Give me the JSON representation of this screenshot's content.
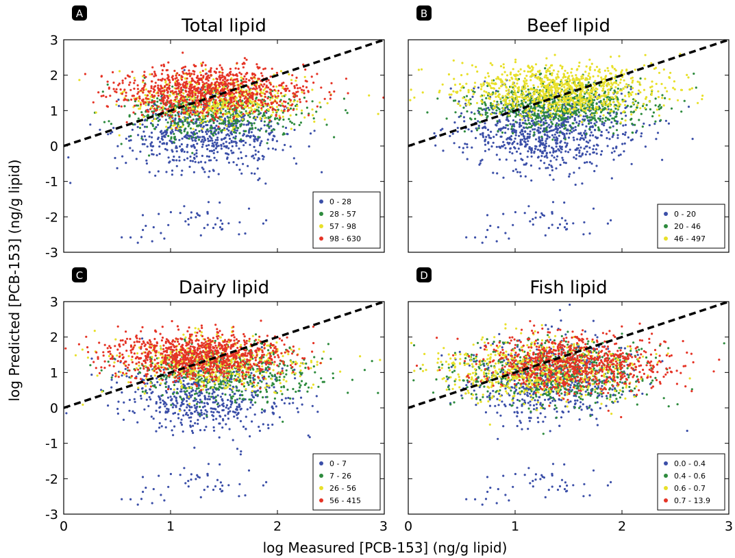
{
  "figure": {
    "xlabel": "log Measured [PCB-153] (ng/g lipid)",
    "ylabel": "log Predicted [PCB-153] (ng/g lipid)"
  },
  "colors": {
    "blue": "#3b4fa8",
    "green": "#2e8b3e",
    "yellow": "#e8e02a",
    "red": "#e53426",
    "reference_line": "#000000"
  },
  "chart_data": [
    {
      "type": "scatter",
      "letter": "A",
      "title": "Total lipid",
      "xlim": [
        0,
        3
      ],
      "ylim": [
        -3,
        3
      ],
      "xticks": [
        "0",
        "1",
        "2",
        "3"
      ],
      "yticks": [
        "3",
        "2",
        "1",
        "0",
        "-1",
        "-2",
        "-3"
      ],
      "reference_line": {
        "from": [
          0,
          0
        ],
        "to": [
          3,
          3
        ],
        "style": "dashed"
      },
      "legend_position": "lower-right",
      "series": [
        {
          "name": "0 - 28",
          "color": "blue",
          "cloud": {
            "cx": 1.3,
            "cy": 0.3,
            "sx": 0.38,
            "sy": 0.5,
            "n": 620
          }
        },
        {
          "name": "28 - 57",
          "color": "green",
          "cloud": {
            "cx": 1.4,
            "cy": 0.95,
            "sx": 0.4,
            "sy": 0.35,
            "n": 520
          }
        },
        {
          "name": "57 - 98",
          "color": "yellow",
          "cloud": {
            "cx": 1.45,
            "cy": 1.3,
            "sx": 0.42,
            "sy": 0.35,
            "n": 520
          }
        },
        {
          "name": "98 - 630",
          "color": "red",
          "cloud": {
            "cx": 1.35,
            "cy": 1.55,
            "sx": 0.42,
            "sy": 0.35,
            "n": 950
          }
        }
      ]
    },
    {
      "type": "scatter",
      "letter": "B",
      "title": "Beef lipid",
      "xlim": [
        0,
        3
      ],
      "ylim": [
        -3,
        3
      ],
      "xticks": [
        "0",
        "1",
        "2",
        "3"
      ],
      "yticks": [
        "3",
        "2",
        "1",
        "0",
        "-1",
        "-2",
        "-3"
      ],
      "reference_line": {
        "from": [
          0,
          0
        ],
        "to": [
          3,
          3
        ],
        "style": "dashed"
      },
      "legend_position": "lower-right",
      "series": [
        {
          "name": "0 - 20",
          "color": "blue",
          "cloud": {
            "cx": 1.3,
            "cy": 0.45,
            "sx": 0.4,
            "sy": 0.55,
            "n": 820
          }
        },
        {
          "name": "20 - 46",
          "color": "green",
          "cloud": {
            "cx": 1.45,
            "cy": 1.15,
            "sx": 0.42,
            "sy": 0.35,
            "n": 720
          }
        },
        {
          "name": "46 - 497",
          "color": "yellow",
          "cloud": {
            "cx": 1.4,
            "cy": 1.6,
            "sx": 0.45,
            "sy": 0.35,
            "n": 950
          }
        }
      ]
    },
    {
      "type": "scatter",
      "letter": "C",
      "title": "Dairy lipid",
      "xlim": [
        0,
        3
      ],
      "ylim": [
        -3,
        3
      ],
      "xticks": [
        "0",
        "1",
        "2",
        "3"
      ],
      "yticks": [
        "3",
        "2",
        "1",
        "0",
        "-1",
        "-2",
        "-3"
      ],
      "reference_line": {
        "from": [
          0,
          0
        ],
        "to": [
          3,
          3
        ],
        "style": "dashed"
      },
      "legend_position": "lower-right",
      "series": [
        {
          "name": "0 - 7",
          "color": "blue",
          "cloud": {
            "cx": 1.3,
            "cy": 0.3,
            "sx": 0.4,
            "sy": 0.5,
            "n": 560
          }
        },
        {
          "name": "7 - 26",
          "color": "green",
          "cloud": {
            "cx": 1.5,
            "cy": 0.95,
            "sx": 0.42,
            "sy": 0.4,
            "n": 520
          }
        },
        {
          "name": "26 - 56",
          "color": "yellow",
          "cloud": {
            "cx": 1.4,
            "cy": 1.25,
            "sx": 0.42,
            "sy": 0.38,
            "n": 520
          }
        },
        {
          "name": "56 - 415",
          "color": "red",
          "cloud": {
            "cx": 1.25,
            "cy": 1.45,
            "sx": 0.4,
            "sy": 0.35,
            "n": 980
          }
        }
      ]
    },
    {
      "type": "scatter",
      "letter": "D",
      "title": "Fish lipid",
      "xlim": [
        0,
        3
      ],
      "ylim": [
        -3,
        3
      ],
      "xticks": [
        "0",
        "1",
        "2",
        "3"
      ],
      "yticks": [
        "3",
        "2",
        "1",
        "0",
        "-1",
        "-2",
        "-3"
      ],
      "reference_line": {
        "from": [
          0,
          0
        ],
        "to": [
          3,
          3
        ],
        "style": "dashed"
      },
      "legend_position": "lower-right",
      "series": [
        {
          "name": "0.0 - 0.4",
          "color": "blue",
          "cloud": {
            "cx": 1.35,
            "cy": 0.8,
            "sx": 0.35,
            "sy": 0.6,
            "n": 560
          }
        },
        {
          "name": "0.4 - 0.6",
          "color": "green",
          "cloud": {
            "cx": 1.35,
            "cy": 0.95,
            "sx": 0.45,
            "sy": 0.45,
            "n": 620
          }
        },
        {
          "name": "0.6 - 0.7",
          "color": "yellow",
          "cloud": {
            "cx": 1.2,
            "cy": 1.05,
            "sx": 0.45,
            "sy": 0.42,
            "n": 620
          }
        },
        {
          "name": "0.7 - 13.9",
          "color": "red",
          "cloud": {
            "cx": 1.55,
            "cy": 1.25,
            "sx": 0.42,
            "sy": 0.4,
            "n": 820
          }
        }
      ]
    }
  ]
}
